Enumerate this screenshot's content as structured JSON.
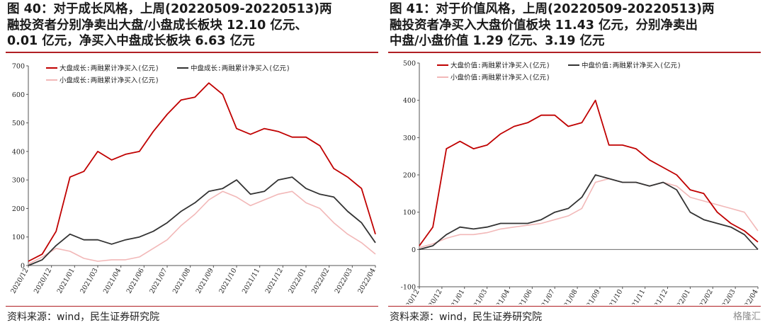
{
  "colors": {
    "large": "#c00000",
    "mid": "#333333",
    "small": "#f2b8b8",
    "accent": "#b01f24"
  },
  "watermark": "格隆汇",
  "panels": [
    {
      "title_lines": [
        "图 40：对于成长风格，上周(20220509-20220513)两",
        "融投资者分别净卖出大盘/小盘成长板块  12.10 亿元、",
        "0.01 亿元，净买入中盘成长板块 6.63 亿元"
      ],
      "source": "资料来源：wind，民生证券研究院"
    },
    {
      "title_lines": [
        "图 41：对于价值风格，上周(20220509-20220513)两",
        "融投资者净买入大盘价值板块 11.43 亿元，分别净卖出",
        "中盘/小盘价值 1.29 亿元、3.19 亿元"
      ],
      "source": "资料来源：wind，民生证券研究院"
    }
  ],
  "chart_data": [
    {
      "type": "line",
      "title": "",
      "ylim": [
        0,
        700
      ],
      "yticks": [
        0,
        100,
        200,
        300,
        400,
        500,
        600,
        700
      ],
      "xticks": [
        "2020/12",
        "2020/12",
        "2021/01",
        "2021/03",
        "2021/04",
        "2021/06",
        "2021/07",
        "2021/08",
        "2021/09",
        "2021/10",
        "2021/11",
        "2021/12",
        "2022/01",
        "2022/02",
        "2022/03",
        "2022/04"
      ],
      "legend": {
        "position": "top-left",
        "entries": [
          "大盘成长:两融累计净买入(亿元)",
          "中盘成长:两融累计净买入(亿元)",
          "小盘成长:两融累计净买入(亿元)"
        ]
      },
      "x": [
        0,
        0.04,
        0.08,
        0.12,
        0.16,
        0.2,
        0.24,
        0.28,
        0.32,
        0.36,
        0.4,
        0.44,
        0.48,
        0.52,
        0.56,
        0.6,
        0.64,
        0.68,
        0.72,
        0.76,
        0.8,
        0.84,
        0.88,
        0.92,
        0.96,
        1
      ],
      "series": [
        {
          "name": "大盘成长:两融累计净买入(亿元)",
          "color": "#c00000",
          "values": [
            15,
            40,
            120,
            310,
            330,
            400,
            370,
            390,
            400,
            470,
            530,
            580,
            590,
            640,
            600,
            480,
            460,
            480,
            470,
            450,
            450,
            420,
            340,
            310,
            270,
            110
          ]
        },
        {
          "name": "中盘成长:两融累计净买入(亿元)",
          "color": "#333333",
          "values": [
            0,
            20,
            70,
            110,
            90,
            90,
            75,
            90,
            100,
            120,
            150,
            190,
            220,
            260,
            270,
            300,
            250,
            260,
            300,
            310,
            270,
            250,
            240,
            190,
            150,
            80
          ]
        },
        {
          "name": "小盘成长:两融累计净买入(亿元)",
          "color": "#f2b8b8",
          "values": [
            5,
            30,
            60,
            50,
            25,
            15,
            20,
            20,
            30,
            60,
            90,
            140,
            180,
            230,
            260,
            240,
            210,
            230,
            250,
            260,
            220,
            200,
            150,
            110,
            80,
            40
          ]
        }
      ]
    },
    {
      "type": "line",
      "title": "",
      "ylim": [
        -100,
        500
      ],
      "yticks": [
        -100,
        0,
        100,
        200,
        300,
        400,
        500
      ],
      "xticks": [
        "2020/12",
        "2020/12",
        "2021/01",
        "2021/03",
        "2021/04",
        "2021/06",
        "2021/07",
        "2021/08",
        "2021/09",
        "2021/10",
        "2021/11",
        "2021/12",
        "2022/01",
        "2022/02",
        "2022/03",
        "2022/04"
      ],
      "legend": {
        "position": "top-left",
        "entries": [
          "大盘价值:两融累计净买入(亿元)",
          "中盘价值:两融累计净买入(亿元)",
          "小盘价值:两融累计净买入(亿元)"
        ]
      },
      "x": [
        0,
        0.04,
        0.08,
        0.12,
        0.16,
        0.2,
        0.24,
        0.28,
        0.32,
        0.36,
        0.4,
        0.44,
        0.48,
        0.52,
        0.56,
        0.6,
        0.64,
        0.68,
        0.72,
        0.76,
        0.8,
        0.84,
        0.88,
        0.92,
        0.96,
        1
      ],
      "series": [
        {
          "name": "大盘价值:两融累计净买入(亿元)",
          "color": "#c00000",
          "values": [
            10,
            60,
            270,
            290,
            270,
            280,
            310,
            330,
            340,
            360,
            360,
            330,
            340,
            400,
            280,
            280,
            270,
            240,
            220,
            200,
            160,
            150,
            100,
            70,
            50,
            20
          ]
        },
        {
          "name": "中盘价值:两融累计净买入(亿元)",
          "color": "#333333",
          "values": [
            0,
            10,
            40,
            60,
            55,
            60,
            70,
            70,
            70,
            80,
            100,
            110,
            140,
            200,
            190,
            180,
            180,
            170,
            180,
            160,
            100,
            80,
            70,
            60,
            40,
            0
          ]
        },
        {
          "name": "小盘价值:两融累计净买入(亿元)",
          "color": "#f2b8b8",
          "values": [
            5,
            15,
            30,
            40,
            40,
            45,
            55,
            60,
            65,
            70,
            80,
            90,
            110,
            180,
            190,
            180,
            180,
            170,
            180,
            170,
            140,
            130,
            120,
            110,
            100,
            50
          ]
        }
      ]
    }
  ]
}
